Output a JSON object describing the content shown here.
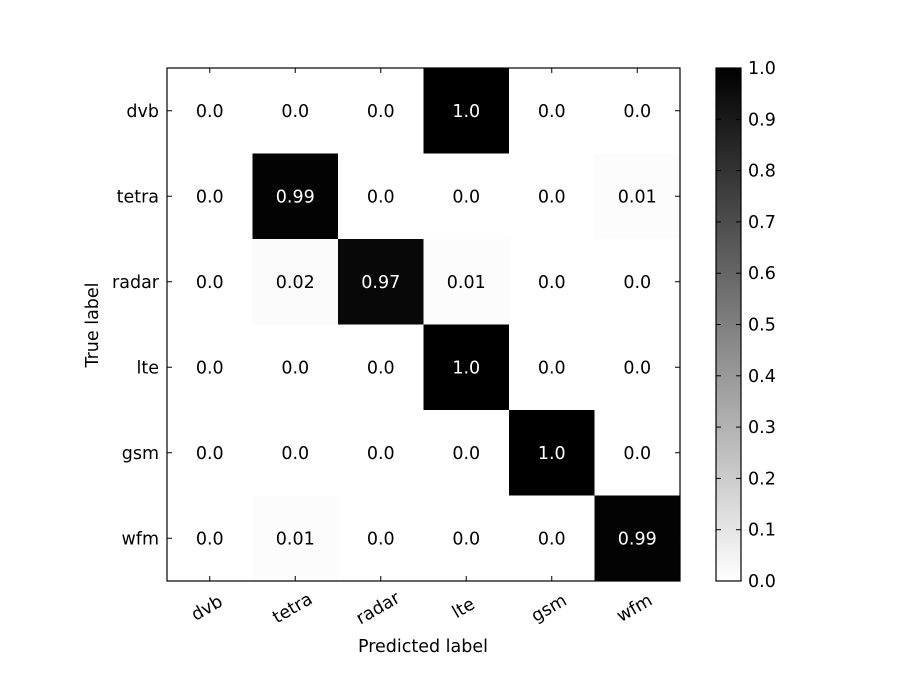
{
  "chart_data": {
    "type": "heatmap",
    "title": "",
    "xlabel": "Predicted label",
    "ylabel": "True label",
    "x_categories": [
      "dvb",
      "tetra",
      "radar",
      "lte",
      "gsm",
      "wfm"
    ],
    "y_categories": [
      "dvb",
      "tetra",
      "radar",
      "lte",
      "gsm",
      "wfm"
    ],
    "values": [
      [
        0.0,
        0.0,
        0.0,
        1.0,
        0.0,
        0.0
      ],
      [
        0.0,
        0.99,
        0.0,
        0.0,
        0.0,
        0.01
      ],
      [
        0.0,
        0.02,
        0.97,
        0.01,
        0.0,
        0.0
      ],
      [
        0.0,
        0.0,
        0.0,
        1.0,
        0.0,
        0.0
      ],
      [
        0.0,
        0.0,
        0.0,
        0.0,
        1.0,
        0.0
      ],
      [
        0.0,
        0.01,
        0.0,
        0.0,
        0.0,
        0.99
      ]
    ],
    "value_labels": [
      [
        "0.0",
        "0.0",
        "0.0",
        "1.0",
        "0.0",
        "0.0"
      ],
      [
        "0.0",
        "0.99",
        "0.0",
        "0.0",
        "0.0",
        "0.01"
      ],
      [
        "0.0",
        "0.02",
        "0.97",
        "0.01",
        "0.0",
        "0.0"
      ],
      [
        "0.0",
        "0.0",
        "0.0",
        "1.0",
        "0.0",
        "0.0"
      ],
      [
        "0.0",
        "0.0",
        "0.0",
        "0.0",
        "1.0",
        "0.0"
      ],
      [
        "0.0",
        "0.01",
        "0.0",
        "0.0",
        "0.0",
        "0.99"
      ]
    ],
    "colormap": "grayscale (white = 0.0, black = 1.0)",
    "colorbar": {
      "range": [
        0.0,
        1.0
      ],
      "ticks": [
        0.0,
        0.1,
        0.2,
        0.3,
        0.4,
        0.5,
        0.6,
        0.7,
        0.8,
        0.9,
        1.0
      ],
      "tick_labels": [
        "0.0",
        "0.1",
        "0.2",
        "0.3",
        "0.4",
        "0.5",
        "0.6",
        "0.7",
        "0.8",
        "0.9",
        "1.0"
      ]
    },
    "grid": false
  }
}
